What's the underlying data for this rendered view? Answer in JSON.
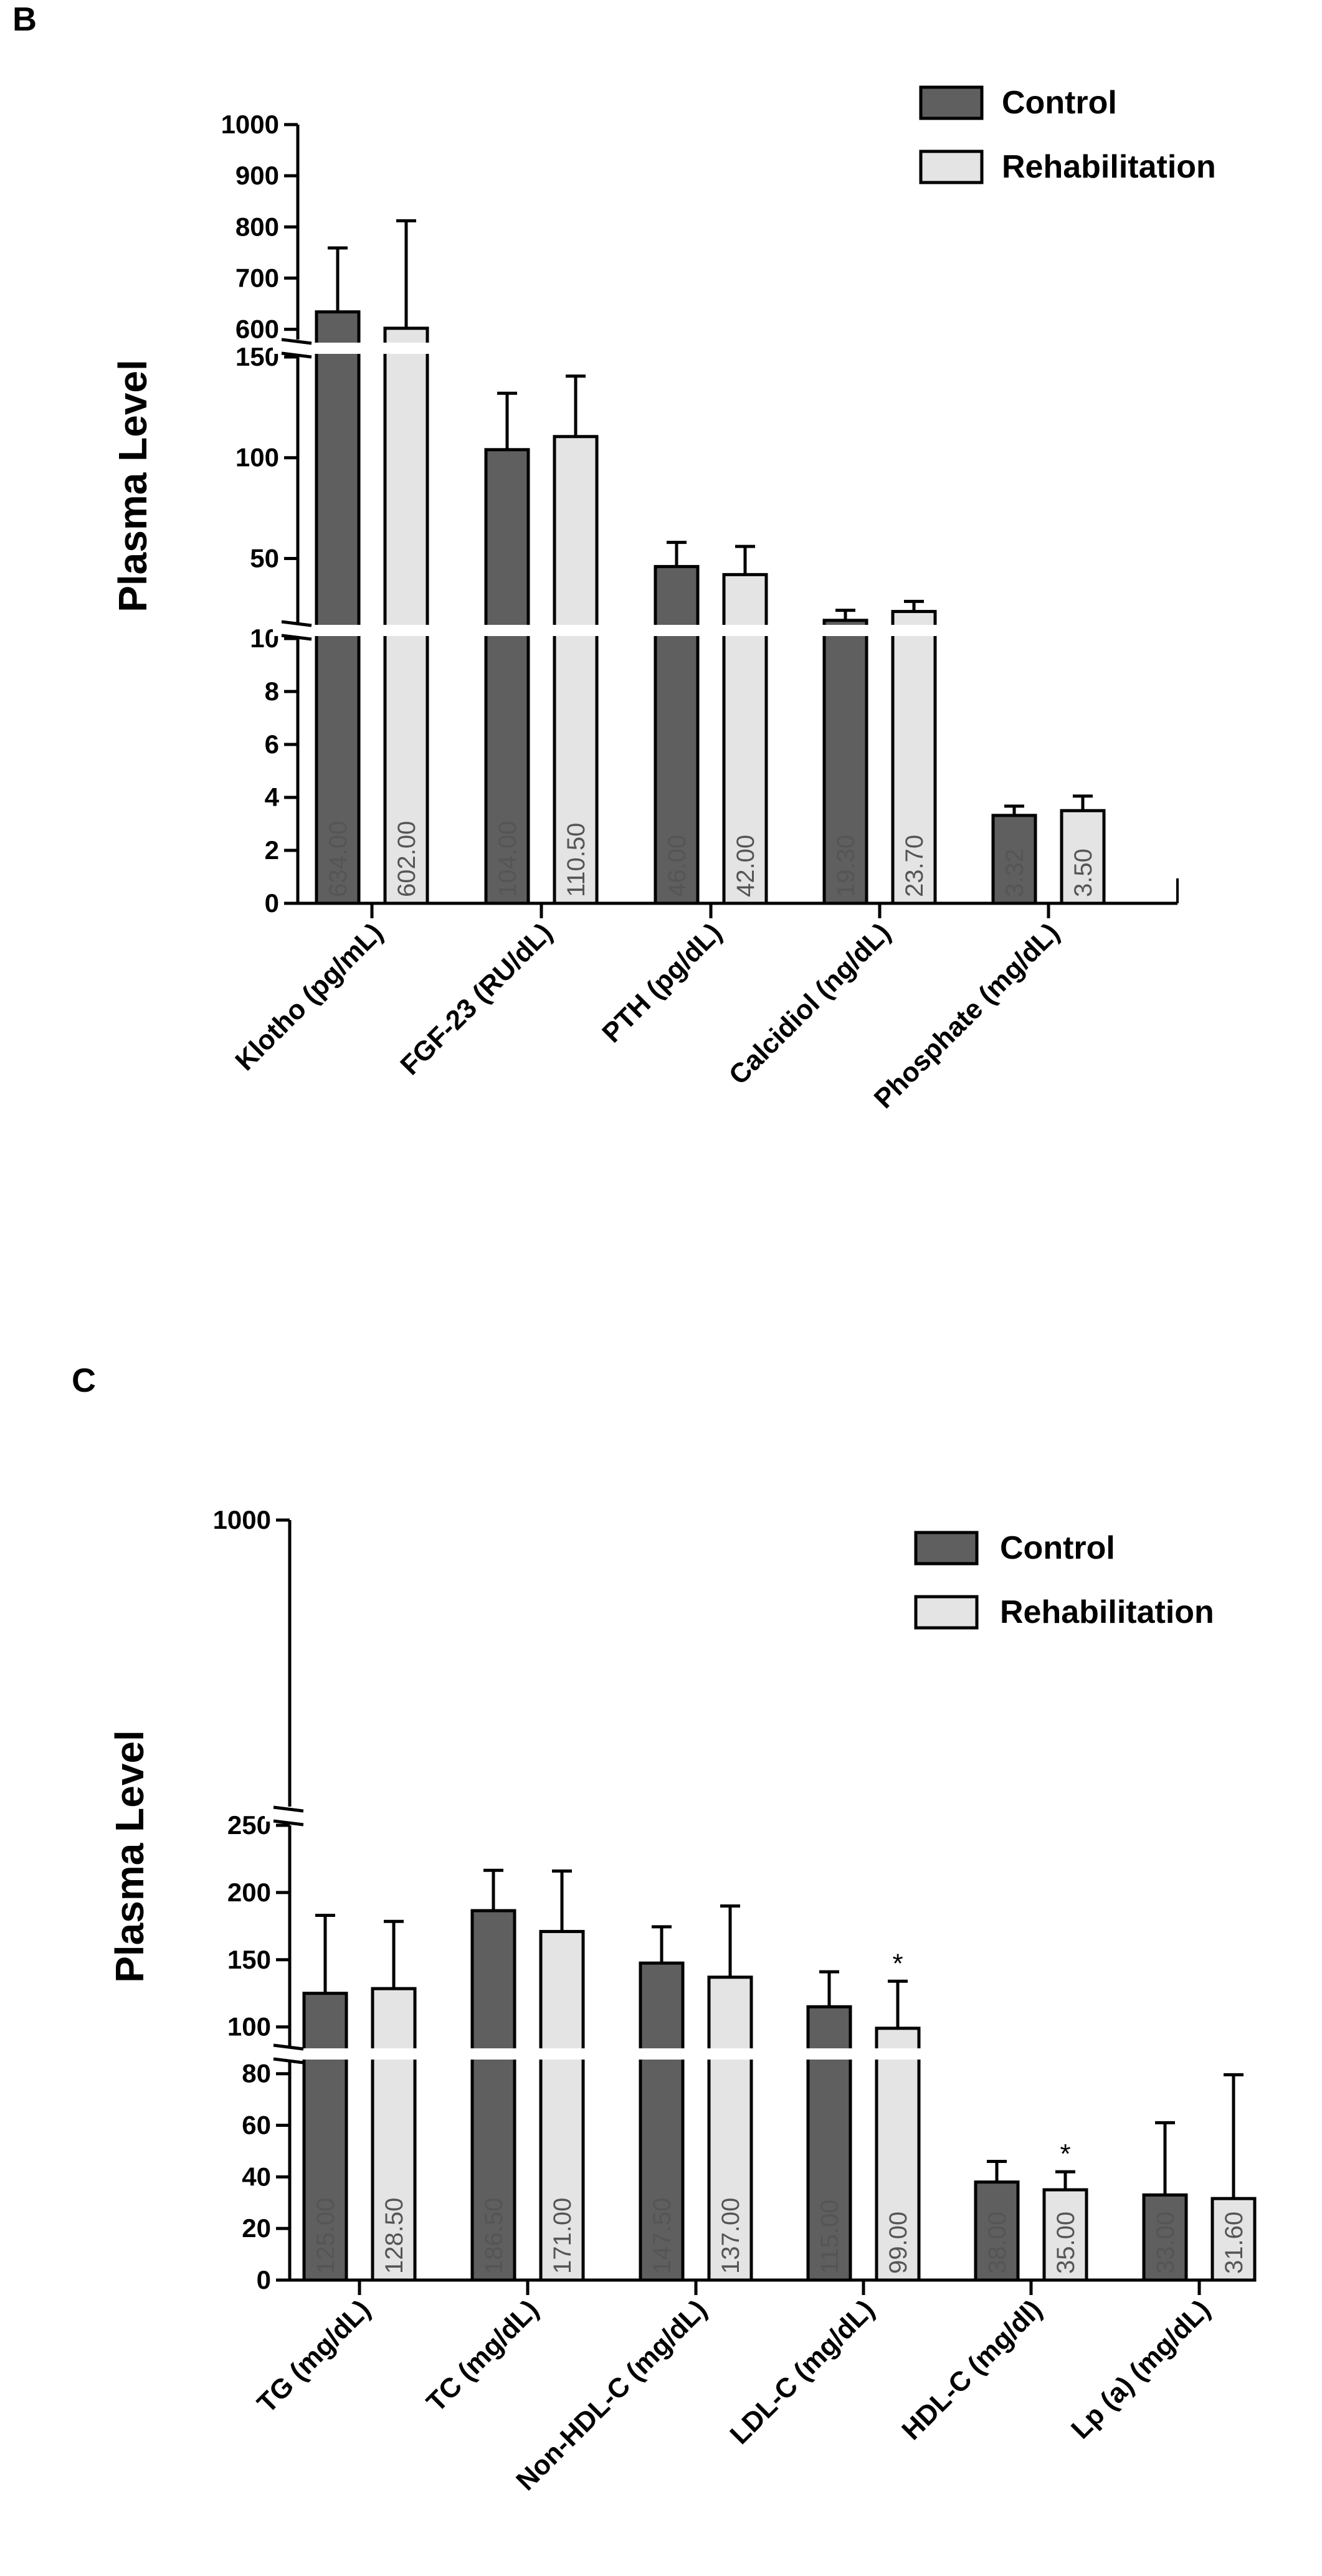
{
  "chart_data": [
    {
      "panel": "B",
      "type": "bar",
      "ylabel": "Plasma Level",
      "categories": [
        "Klotho (pg/mL)",
        "FGF-23 (RU/dL)",
        "PTH (pg/dL)",
        "Calcidiol (ng/dL)",
        "Phosphate (mg/dL)"
      ],
      "series": [
        {
          "name": "Control",
          "color": "#5f5f5f",
          "values": [
            634.0,
            104.0,
            46.0,
            19.3,
            3.32
          ],
          "value_labels": [
            "634.00",
            "104.00",
            "46.00",
            "19.30",
            "3.32"
          ],
          "errors": [
            125,
            28,
            12,
            5,
            0.35
          ],
          "sig": [
            "",
            "",
            "",
            "",
            ""
          ]
        },
        {
          "name": "Rehabilitation",
          "color": "#e4e4e4",
          "values": [
            602.0,
            110.5,
            42.0,
            23.7,
            3.5
          ],
          "value_labels": [
            "602.00",
            "110.50",
            "42.00",
            "23.70",
            "3.50"
          ],
          "errors": [
            210,
            30,
            14,
            5,
            0.55
          ],
          "sig": [
            "",
            "",
            "",
            "",
            ""
          ]
        }
      ],
      "y_segments": [
        {
          "range": [
            0,
            10
          ],
          "ticks": [
            "0",
            "2",
            "4",
            "6",
            "8",
            "10"
          ]
        },
        {
          "range": [
            18,
            150
          ],
          "ticks": [
            "50",
            "100",
            "150"
          ]
        },
        {
          "range": [
            580,
            1000
          ],
          "ticks": [
            "600",
            "700",
            "800",
            "900",
            "1000"
          ]
        }
      ]
    },
    {
      "panel": "C",
      "type": "bar",
      "ylabel": "Plasma Level",
      "categories": [
        "TG (mg/dL)",
        "TC (mg/dL)",
        "Non-HDL-C (mg/dL)",
        "LDL-C (mg/dL)",
        "HDL-C (mg/dl)",
        "Lp (a) (mg/dL)"
      ],
      "series": [
        {
          "name": "Control",
          "color": "#5f5f5f",
          "values": [
            125.0,
            186.5,
            147.5,
            115.0,
            38.0,
            33.0
          ],
          "value_labels": [
            "125.00",
            "186.50",
            "147.50",
            "115.00",
            "38.00",
            "33.00"
          ],
          "errors": [
            58,
            30,
            27,
            26,
            8,
            28
          ],
          "sig": [
            "",
            "",
            "",
            "",
            "",
            ""
          ]
        },
        {
          "name": "Rehabilitation",
          "color": "#e4e4e4",
          "values": [
            128.5,
            171.0,
            137.0,
            99.0,
            35.0,
            31.6
          ],
          "value_labels": [
            "128.50",
            "171.00",
            "137.00",
            "99.00",
            "35.00",
            "31.60"
          ],
          "errors": [
            50,
            45,
            53,
            35,
            7,
            48
          ],
          "sig": [
            "",
            "",
            "",
            "*",
            "*",
            ""
          ]
        }
      ],
      "y_segments": [
        {
          "range": [
            0,
            85
          ],
          "ticks": [
            "0",
            "20",
            "40",
            "60",
            "80"
          ]
        },
        {
          "range": [
            85,
            250
          ],
          "ticks": [
            "100",
            "150",
            "200",
            "250"
          ]
        },
        {
          "range": [
            250,
            1000
          ],
          "ticks": [
            "1000"
          ]
        }
      ]
    }
  ]
}
